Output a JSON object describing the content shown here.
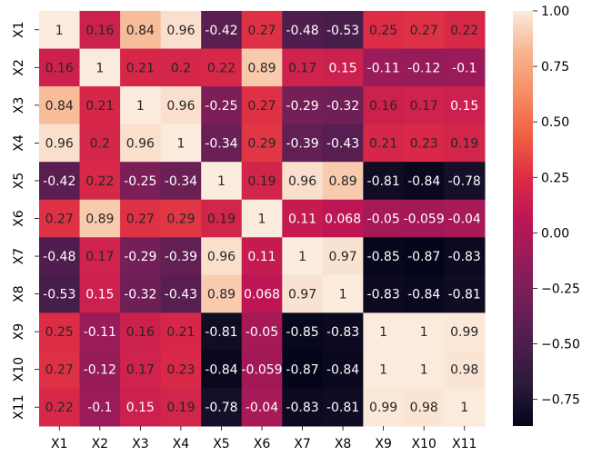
{
  "chart_data": {
    "type": "heatmap",
    "title": "",
    "xlabel": "",
    "ylabel": "",
    "rows": [
      "X1",
      "X2",
      "X3",
      "X4",
      "X5",
      "X6",
      "X7",
      "X8",
      "X9",
      "X10",
      "X11"
    ],
    "columns": [
      "X1",
      "X2",
      "X3",
      "X4",
      "X5",
      "X6",
      "X7",
      "X8",
      "X9",
      "X10",
      "X11"
    ],
    "values": [
      [
        1,
        0.16,
        0.84,
        0.96,
        -0.42,
        0.27,
        -0.48,
        -0.53,
        0.25,
        0.27,
        0.22
      ],
      [
        0.16,
        1,
        0.21,
        0.2,
        0.22,
        0.89,
        0.17,
        0.15,
        -0.11,
        -0.12,
        -0.1
      ],
      [
        0.84,
        0.21,
        1,
        0.96,
        -0.25,
        0.27,
        -0.29,
        -0.32,
        0.16,
        0.17,
        0.15
      ],
      [
        0.96,
        0.2,
        0.96,
        1,
        -0.34,
        0.29,
        -0.39,
        -0.43,
        0.21,
        0.23,
        0.19
      ],
      [
        -0.42,
        0.22,
        -0.25,
        -0.34,
        1,
        0.19,
        0.96,
        0.89,
        -0.81,
        -0.84,
        -0.78
      ],
      [
        0.27,
        0.89,
        0.27,
        0.29,
        0.19,
        1,
        0.11,
        0.068,
        -0.05,
        -0.059,
        -0.04
      ],
      [
        -0.48,
        0.17,
        -0.29,
        -0.39,
        0.96,
        0.11,
        1,
        0.97,
        -0.85,
        -0.87,
        -0.83
      ],
      [
        -0.53,
        0.15,
        -0.32,
        -0.43,
        0.89,
        0.068,
        0.97,
        1,
        -0.83,
        -0.84,
        -0.81
      ],
      [
        0.25,
        -0.11,
        0.16,
        0.21,
        -0.81,
        -0.05,
        -0.85,
        -0.83,
        1,
        1,
        0.99
      ],
      [
        0.27,
        -0.12,
        0.17,
        0.23,
        -0.84,
        -0.059,
        -0.87,
        -0.84,
        1,
        1,
        0.98
      ],
      [
        0.22,
        -0.1,
        0.15,
        0.19,
        -0.78,
        -0.04,
        -0.83,
        -0.81,
        0.99,
        0.98,
        1
      ]
    ],
    "colorbar": {
      "range": [
        -0.87,
        1.0
      ],
      "ticks": [
        -0.75,
        -0.5,
        -0.25,
        0.0,
        0.25,
        0.5,
        0.75,
        1.0
      ],
      "tick_labels": [
        "−0.75",
        "−0.50",
        "−0.25",
        "0.00",
        "0.25",
        "0.50",
        "0.75",
        "1.00"
      ]
    },
    "colormap": "rocket",
    "annotations": true,
    "legend": "colorbar right",
    "grid": false
  }
}
